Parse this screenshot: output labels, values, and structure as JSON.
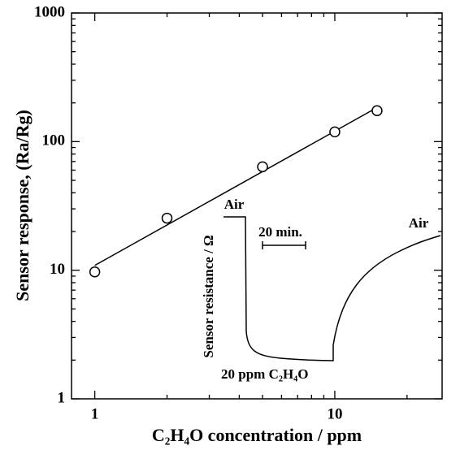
{
  "chart_data": {
    "type": "scatter",
    "xlabel": "C₂H₄O concentration / ppm",
    "ylabel": "Sensor response, (Ra/Rg)",
    "xscale": "log",
    "yscale": "log",
    "xlim": [
      0.8,
      28
    ],
    "ylim": [
      1,
      1000
    ],
    "xticks": [
      1,
      10
    ],
    "yticks": [
      1,
      10,
      100,
      1000
    ],
    "xminorticks": [
      2,
      3,
      4,
      5,
      6,
      7,
      8,
      9,
      20
    ],
    "yminorticks": [
      2,
      3,
      4,
      5,
      6,
      7,
      8,
      9,
      20,
      30,
      40,
      50,
      60,
      70,
      80,
      90,
      200,
      300,
      400,
      500,
      600,
      700,
      800,
      900
    ],
    "series": [
      {
        "style": "markers",
        "color": "#000000",
        "x": [
          1,
          2,
          5,
          10,
          15
        ],
        "values": [
          9.7,
          25.4,
          63.7,
          119,
          174
        ]
      },
      {
        "style": "line",
        "color": "#000000",
        "x": [
          1,
          15
        ],
        "values": [
          10.9,
          184
        ]
      }
    ],
    "annotations": [
      "Air",
      "20 min.",
      "Air",
      "Sensor resistance / Ω",
      "20 ppm C₂H₄O"
    ]
  }
}
